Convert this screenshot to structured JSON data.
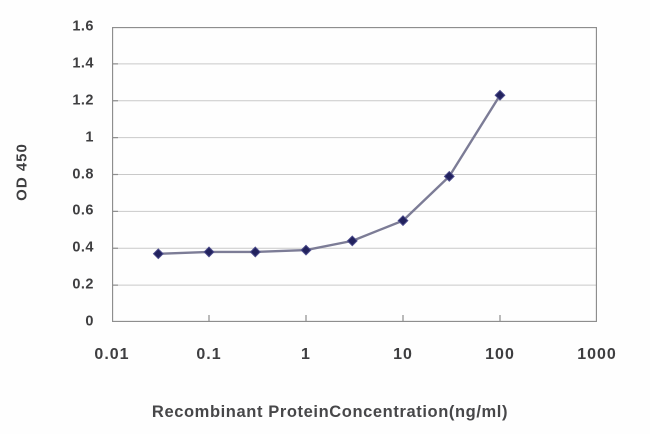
{
  "chart_data": {
    "type": "line",
    "title": "",
    "xlabel": "Recombinant ProteinConcentration(ng/ml)",
    "ylabel": "OD 450",
    "x_scale": "log",
    "xlim": [
      0.01,
      1000
    ],
    "ylim": [
      0,
      1.6
    ],
    "x": [
      0.03,
      0.1,
      0.3,
      1,
      3,
      10,
      30,
      100
    ],
    "y": [
      0.37,
      0.38,
      0.38,
      0.39,
      0.44,
      0.55,
      0.79,
      1.23
    ],
    "x_tick_values": [
      0.01,
      0.1,
      1,
      10,
      100,
      1000
    ],
    "x_tick_labels": [
      "0.01",
      "0.1",
      "1",
      "10",
      "100",
      "1000"
    ],
    "y_tick_values": [
      0,
      0.2,
      0.4,
      0.6,
      0.8,
      1,
      1.2,
      1.4,
      1.6
    ],
    "y_tick_labels": [
      "0",
      "0.2",
      "0.4",
      "0.6",
      "0.8",
      "1",
      "1.2",
      "1.4",
      "1.6"
    ],
    "grid": "horizontal",
    "legend": "none",
    "marker": "diamond",
    "colors": {
      "marker": "#22225e",
      "marker_halo": "#4a4a8a",
      "line": "#7c7c96",
      "grid": "#c9c9c9",
      "frame": "#8e8e8e",
      "tick": "#8e8e8e",
      "text": "#3e3e40"
    }
  }
}
